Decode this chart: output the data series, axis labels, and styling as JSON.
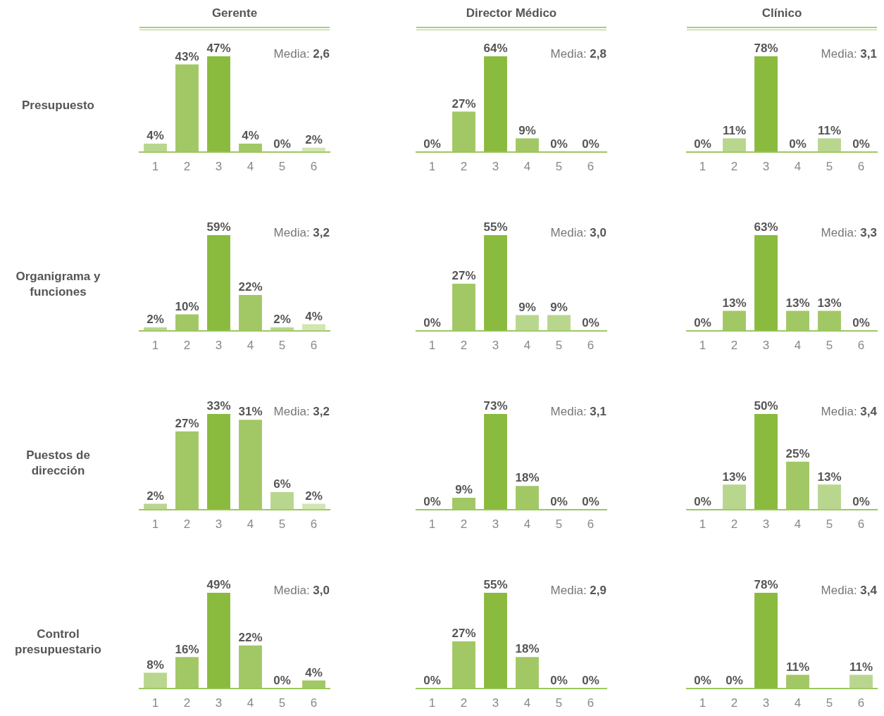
{
  "chart_data": [
    {
      "type": "bar",
      "title": "Gerente",
      "ylabel": "Presupuesto",
      "categories": [
        "1",
        "2",
        "3",
        "4",
        "5",
        "6"
      ],
      "values": [
        4,
        43,
        47,
        4,
        0,
        2
      ],
      "value_labels": [
        "4%",
        "43%",
        "47%",
        "4%",
        "0%",
        "2%"
      ],
      "colors": [
        "#b9d68e",
        "#a2c765",
        "#8aba3e",
        "#a2c765",
        "#b9d68e",
        "#d2e5b2"
      ],
      "annotations": [
        "Media: 2,6"
      ]
    },
    {
      "type": "bar",
      "title": "Director Médico",
      "categories": [
        "1",
        "2",
        "3",
        "4",
        "5",
        "6"
      ],
      "values": [
        0,
        27,
        64,
        9,
        0,
        0
      ],
      "value_labels": [
        "0%",
        "27%",
        "64%",
        "9%",
        "0%",
        "0%"
      ],
      "colors": [
        "#b9d68e",
        "#a2c765",
        "#8aba3e",
        "#a2c765",
        "#b9d68e",
        "#b9d68e"
      ],
      "annotations": [
        "Media: 2,8"
      ]
    },
    {
      "type": "bar",
      "title": "Clínico",
      "categories": [
        "1",
        "2",
        "3",
        "4",
        "5",
        "6"
      ],
      "values": [
        0,
        11,
        78,
        0,
        11,
        0
      ],
      "value_labels": [
        "0%",
        "11%",
        "78%",
        "0%",
        "11%",
        "0%"
      ],
      "colors": [
        "#b9d68e",
        "#b9d68e",
        "#8aba3e",
        "#b9d68e",
        "#b9d68e",
        "#b9d68e"
      ],
      "annotations": [
        "Media: 3,1"
      ]
    },
    {
      "type": "bar",
      "ylabel": "Organigrama y funciones",
      "categories": [
        "1",
        "2",
        "3",
        "4",
        "5",
        "6"
      ],
      "values": [
        2,
        10,
        59,
        22,
        2,
        4
      ],
      "value_labels": [
        "2%",
        "10%",
        "59%",
        "22%",
        "2%",
        "4%"
      ],
      "colors": [
        "#b9d68e",
        "#a2c765",
        "#8aba3e",
        "#a2c765",
        "#b9d68e",
        "#d2e5b2"
      ],
      "annotations": [
        "Media: 3,2"
      ]
    },
    {
      "type": "bar",
      "categories": [
        "1",
        "2",
        "3",
        "4",
        "5",
        "6"
      ],
      "values": [
        0,
        27,
        55,
        9,
        9,
        0
      ],
      "value_labels": [
        "0%",
        "27%",
        "55%",
        "9%",
        "9%",
        "0%"
      ],
      "colors": [
        "#b9d68e",
        "#a2c765",
        "#8aba3e",
        "#b9d68e",
        "#b9d68e",
        "#b9d68e"
      ],
      "annotations": [
        "Media: 3,0"
      ]
    },
    {
      "type": "bar",
      "categories": [
        "1",
        "2",
        "3",
        "4",
        "5",
        "6"
      ],
      "values": [
        0,
        13,
        63,
        13,
        13,
        0
      ],
      "value_labels": [
        "0%",
        "13%",
        "63%",
        "13%",
        "13%",
        "0%"
      ],
      "colors": [
        "#b9d68e",
        "#a2c765",
        "#8aba3e",
        "#a2c765",
        "#a2c765",
        "#b9d68e"
      ],
      "annotations": [
        "Media: 3,3"
      ]
    },
    {
      "type": "bar",
      "ylabel": "Puestos de dirección",
      "categories": [
        "1",
        "2",
        "3",
        "4",
        "5",
        "6"
      ],
      "values": [
        2,
        27,
        33,
        31,
        6,
        2
      ],
      "value_labels": [
        "2%",
        "27%",
        "33%",
        "31%",
        "6%",
        "2%"
      ],
      "colors": [
        "#b9d68e",
        "#a2c765",
        "#8aba3e",
        "#a2c765",
        "#b9d68e",
        "#d2e5b2"
      ],
      "annotations": [
        "Media: 3,2"
      ]
    },
    {
      "type": "bar",
      "categories": [
        "1",
        "2",
        "3",
        "4",
        "5",
        "6"
      ],
      "values": [
        0,
        9,
        73,
        18,
        0,
        0
      ],
      "value_labels": [
        "0%",
        "9%",
        "73%",
        "18%",
        "0%",
        "0%"
      ],
      "colors": [
        "#b9d68e",
        "#a2c765",
        "#8aba3e",
        "#a2c765",
        "#b9d68e",
        "#b9d68e"
      ],
      "annotations": [
        "Media: 3,1"
      ]
    },
    {
      "type": "bar",
      "categories": [
        "1",
        "2",
        "3",
        "4",
        "5",
        "6"
      ],
      "values": [
        0,
        13,
        50,
        25,
        13,
        0
      ],
      "value_labels": [
        "0%",
        "13%",
        "50%",
        "25%",
        "13%",
        "0%"
      ],
      "colors": [
        "#b9d68e",
        "#b9d68e",
        "#8aba3e",
        "#a2c765",
        "#b9d68e",
        "#b9d68e"
      ],
      "annotations": [
        "Media: 3,4"
      ]
    },
    {
      "type": "bar",
      "ylabel": "Control presupuestario",
      "categories": [
        "1",
        "2",
        "3",
        "4",
        "5",
        "6"
      ],
      "values": [
        8,
        16,
        49,
        22,
        0,
        4
      ],
      "value_labels": [
        "8%",
        "16%",
        "49%",
        "22%",
        "0%",
        "4%"
      ],
      "colors": [
        "#b9d68e",
        "#a2c765",
        "#8aba3e",
        "#a2c765",
        "#b9d68e",
        "#a2c765"
      ],
      "annotations": [
        "Media: 3,0"
      ]
    },
    {
      "type": "bar",
      "categories": [
        "1",
        "2",
        "3",
        "4",
        "5",
        "6"
      ],
      "values": [
        0,
        27,
        55,
        18,
        0,
        0
      ],
      "value_labels": [
        "0%",
        "27%",
        "55%",
        "18%",
        "0%",
        "0%"
      ],
      "colors": [
        "#b9d68e",
        "#a2c765",
        "#8aba3e",
        "#a2c765",
        "#b9d68e",
        "#b9d68e"
      ],
      "annotations": [
        "Media: 2,9"
      ]
    },
    {
      "type": "bar",
      "categories": [
        "1",
        "2",
        "3",
        "4",
        "5",
        "6"
      ],
      "values": [
        0,
        0,
        78,
        11,
        null,
        11
      ],
      "value_labels": [
        "0%",
        "0%",
        "78%",
        "11%",
        null,
        "11%"
      ],
      "colors": [
        "#b9d68e",
        "#b9d68e",
        "#8aba3e",
        "#a2c765",
        "#b9d68e",
        "#b9d68e"
      ],
      "annotations": [
        "Media: 3,4"
      ]
    }
  ]
}
